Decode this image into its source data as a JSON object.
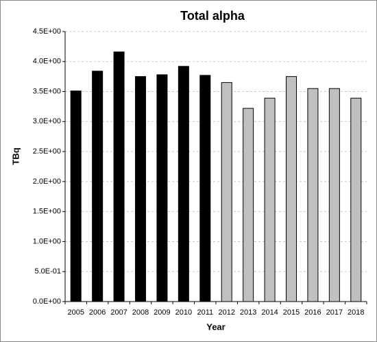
{
  "chart_data": {
    "type": "bar",
    "title": "Total alpha",
    "x_label": "Year",
    "y_label": "TBq",
    "categories": [
      "2005",
      "2006",
      "2007",
      "2008",
      "2009",
      "2010",
      "2011",
      "2012",
      "2013",
      "2014",
      "2015",
      "2016",
      "2017",
      "2018"
    ],
    "values": [
      3.51,
      3.84,
      4.16,
      3.75,
      3.78,
      3.92,
      3.77,
      3.65,
      3.22,
      3.39,
      3.75,
      3.55,
      3.55,
      3.39
    ],
    "colors": [
      "#000000",
      "#000000",
      "#000000",
      "#000000",
      "#000000",
      "#000000",
      "#000000",
      "#c0c0c0",
      "#c0c0c0",
      "#c0c0c0",
      "#c0c0c0",
      "#c0c0c0",
      "#c0c0c0",
      "#c0c0c0"
    ],
    "ylim": [
      0,
      4.5
    ],
    "yticks": [
      {
        "value": 0,
        "label": "0.0E+00"
      },
      {
        "value": 0.5,
        "label": "5.0E-01"
      },
      {
        "value": 1,
        "label": "1.0E+00"
      },
      {
        "value": 1.5,
        "label": "1.5E+00"
      },
      {
        "value": 2,
        "label": "2.0E+00"
      },
      {
        "value": 2.5,
        "label": "2.5E+00"
      },
      {
        "value": 3,
        "label": "3.0E+00"
      },
      {
        "value": 3.5,
        "label": "3.5E+00"
      },
      {
        "value": 4,
        "label": "4.0E+00"
      },
      {
        "value": 4.5,
        "label": "4.5E+00"
      }
    ],
    "grid": true
  }
}
